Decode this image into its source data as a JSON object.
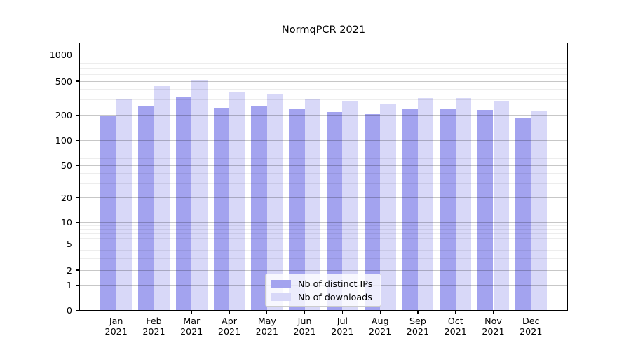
{
  "chart_data": {
    "type": "bar",
    "title": "NormqPCR 2021",
    "xlabel": "",
    "ylabel": "",
    "year": "2021",
    "categories": [
      "Jan",
      "Feb",
      "Mar",
      "Apr",
      "May",
      "Jun",
      "Jul",
      "Aug",
      "Sep",
      "Oct",
      "Nov",
      "Dec"
    ],
    "series": [
      {
        "key": "distinct-ips",
        "name": "Nb of distinct IPs",
        "color": "#a3a3ef",
        "values": [
          196,
          252,
          325,
          245,
          257,
          235,
          218,
          206,
          240,
          235,
          228,
          184
        ]
      },
      {
        "key": "downloads",
        "name": "Nb of downloads",
        "color": "#d8d8f8",
        "values": [
          305,
          435,
          505,
          370,
          350,
          310,
          295,
          275,
          320,
          315,
          295,
          222
        ]
      }
    ],
    "y_ticks": [
      0,
      1,
      2,
      5,
      10,
      20,
      50,
      100,
      200,
      500,
      1000
    ],
    "y_minor_ticks": [
      3,
      4,
      6,
      7,
      8,
      9,
      30,
      40,
      60,
      70,
      80,
      90,
      300,
      400,
      600,
      700,
      800,
      900
    ],
    "scale": "symlog",
    "ylim": [
      0,
      1400
    ],
    "grid": true,
    "legend_position": "bottom-center",
    "background_color": "#ffffff",
    "gridline_major_color": "#c7c7c7",
    "gridline_minor_color": "#ededed"
  }
}
